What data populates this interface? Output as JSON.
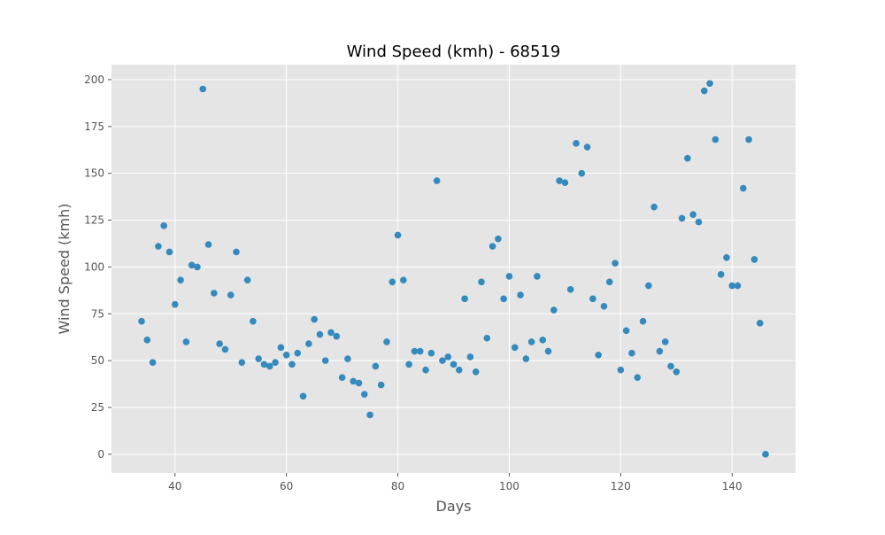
{
  "chart_data": {
    "type": "scatter",
    "title": "Wind Speed (kmh) - 68519",
    "xlabel": "Days",
    "ylabel": "Wind Speed (kmh)",
    "xlim": [
      28.6,
      151.4
    ],
    "ylim": [
      -10,
      208
    ],
    "x_ticks": [
      40,
      60,
      80,
      100,
      120,
      140
    ],
    "y_ticks": [
      0,
      25,
      50,
      75,
      100,
      125,
      150,
      175,
      200
    ],
    "grid": true,
    "background_color": "#e5e5e5",
    "grid_color": "#ffffff",
    "marker_color": "#348abd",
    "series": [
      {
        "x": [
          34,
          35,
          36,
          37,
          38,
          39,
          40,
          41,
          42,
          43,
          44,
          45,
          46,
          47,
          48,
          49,
          50,
          51,
          52,
          53,
          54,
          55,
          56,
          57,
          58,
          59,
          60,
          61,
          62,
          63,
          64,
          65,
          66,
          67,
          68,
          69,
          70,
          71,
          72,
          73,
          74,
          75,
          76,
          77,
          78,
          79,
          80,
          81,
          82,
          83,
          84,
          85,
          86,
          87,
          88,
          89,
          90,
          91,
          92,
          93,
          94,
          95,
          96,
          97,
          98,
          99,
          100,
          101,
          102,
          103,
          104,
          105,
          106,
          107,
          108,
          109,
          110,
          111,
          112,
          113,
          114,
          115,
          116,
          117,
          118,
          119,
          120,
          121,
          122,
          123,
          124,
          125,
          126,
          127,
          128,
          129,
          130,
          131,
          132,
          133,
          134,
          135,
          136,
          137,
          138,
          139,
          140,
          141,
          142,
          143,
          144,
          145,
          146
        ],
        "y": [
          71,
          61,
          49,
          111,
          122,
          108,
          80,
          93,
          60,
          101,
          100,
          195,
          112,
          86,
          59,
          56,
          85,
          108,
          49,
          93,
          71,
          51,
          48,
          47,
          49,
          57,
          53,
          48,
          54,
          31,
          59,
          72,
          64,
          50,
          65,
          63,
          41,
          51,
          39,
          38,
          32,
          21,
          47,
          37,
          60,
          92,
          117,
          93,
          48,
          55,
          55,
          45,
          54,
          146,
          50,
          52,
          48,
          45,
          83,
          52,
          44,
          92,
          62,
          111,
          115,
          83,
          95,
          57,
          85,
          51,
          60,
          95,
          61,
          55,
          77,
          146,
          145,
          88,
          166,
          150,
          164,
          83,
          53,
          79,
          92,
          102,
          45,
          66,
          54,
          41,
          71,
          90,
          132,
          55,
          60,
          47,
          44,
          126,
          158,
          128,
          124,
          194,
          198,
          168,
          96,
          105,
          90,
          90,
          142,
          168,
          104,
          70,
          0
        ]
      }
    ]
  }
}
